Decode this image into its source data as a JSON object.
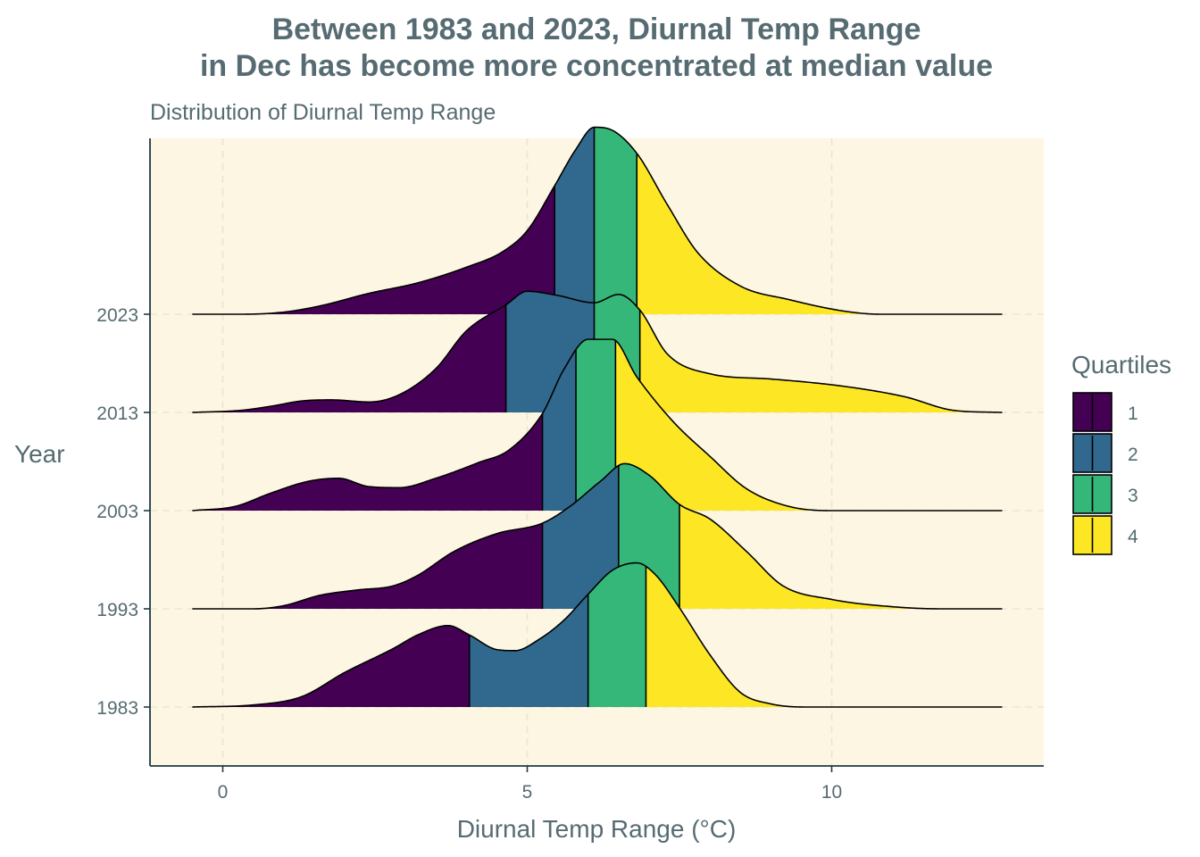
{
  "chart_data": {
    "type": "area",
    "title_lines": [
      "Between 1983 and 2023, Diurnal Temp Range",
      "in Dec has become more concentrated at median value"
    ],
    "subtitle": "Distribution of Diurnal Temp Range",
    "xlabel": "Diurnal Temp Range (°C)",
    "ylabel": "Year",
    "xlim": [
      -1.2,
      13.4
    ],
    "x_ticks": [
      0,
      5,
      10
    ],
    "x_tick_labels": [
      "0",
      "5",
      "10"
    ],
    "grid": true,
    "background": "#fdf6e3",
    "legend": {
      "title": "Quartiles",
      "position": "right",
      "entries": [
        {
          "label": "1",
          "color": "#440154"
        },
        {
          "label": "2",
          "color": "#31688e"
        },
        {
          "label": "3",
          "color": "#35b779"
        },
        {
          "label": "4",
          "color": "#fde725"
        }
      ]
    },
    "series": [
      {
        "name": "1983",
        "quartiles": [
          4.05,
          6.0,
          6.95
        ],
        "points": [
          [
            -0.5,
            0
          ],
          [
            0.5,
            0.02
          ],
          [
            1.3,
            0.1
          ],
          [
            2.0,
            0.33
          ],
          [
            2.8,
            0.56
          ],
          [
            3.2,
            0.69
          ],
          [
            3.7,
            0.78
          ],
          [
            4.05,
            0.69
          ],
          [
            4.5,
            0.55
          ],
          [
            4.8,
            0.54
          ],
          [
            5.2,
            0.65
          ],
          [
            5.6,
            0.83
          ],
          [
            6.0,
            1.08
          ],
          [
            6.4,
            1.31
          ],
          [
            6.8,
            1.38
          ],
          [
            7.1,
            1.27
          ],
          [
            7.5,
            0.95
          ],
          [
            8.0,
            0.5
          ],
          [
            8.5,
            0.14
          ],
          [
            9.0,
            0.03
          ],
          [
            9.6,
            0.0
          ],
          [
            12.8,
            0
          ]
        ]
      },
      {
        "name": "1993",
        "quartiles": [
          5.25,
          6.5,
          7.5
        ],
        "points": [
          [
            -0.5,
            0
          ],
          [
            0.5,
            0.0
          ],
          [
            1.0,
            0.03
          ],
          [
            1.6,
            0.13
          ],
          [
            2.2,
            0.18
          ],
          [
            2.8,
            0.22
          ],
          [
            3.2,
            0.32
          ],
          [
            3.8,
            0.55
          ],
          [
            4.5,
            0.72
          ],
          [
            5.25,
            0.82
          ],
          [
            5.7,
            0.98
          ],
          [
            6.2,
            1.22
          ],
          [
            6.6,
            1.39
          ],
          [
            7.0,
            1.28
          ],
          [
            7.5,
            1.0
          ],
          [
            8.0,
            0.86
          ],
          [
            8.6,
            0.55
          ],
          [
            9.2,
            0.22
          ],
          [
            10.0,
            0.09
          ],
          [
            11.0,
            0.02
          ],
          [
            11.8,
            0
          ],
          [
            12.8,
            0
          ]
        ]
      },
      {
        "name": "2003",
        "quartiles": [
          5.25,
          5.8,
          6.45
        ],
        "points": [
          [
            -0.5,
            0
          ],
          [
            0.2,
            0.04
          ],
          [
            0.8,
            0.17
          ],
          [
            1.4,
            0.28
          ],
          [
            1.9,
            0.31
          ],
          [
            2.4,
            0.23
          ],
          [
            2.9,
            0.22
          ],
          [
            3.5,
            0.31
          ],
          [
            4.2,
            0.46
          ],
          [
            4.7,
            0.58
          ],
          [
            5.25,
            0.93
          ],
          [
            5.6,
            1.35
          ],
          [
            6.0,
            1.64
          ],
          [
            6.4,
            1.64
          ],
          [
            6.8,
            1.28
          ],
          [
            7.4,
            0.85
          ],
          [
            8.0,
            0.52
          ],
          [
            8.6,
            0.21
          ],
          [
            9.3,
            0.04
          ],
          [
            10.0,
            0.0
          ],
          [
            12.8,
            0
          ]
        ]
      },
      {
        "name": "2013",
        "quartiles": [
          4.65,
          6.1,
          6.85
        ],
        "points": [
          [
            -0.5,
            0
          ],
          [
            0.3,
            0.02
          ],
          [
            0.8,
            0.06
          ],
          [
            1.3,
            0.11
          ],
          [
            1.8,
            0.12
          ],
          [
            2.4,
            0.1
          ],
          [
            2.9,
            0.17
          ],
          [
            3.5,
            0.42
          ],
          [
            4.0,
            0.78
          ],
          [
            4.65,
            1.03
          ],
          [
            5.0,
            1.16
          ],
          [
            5.5,
            1.12
          ],
          [
            6.1,
            1.05
          ],
          [
            6.5,
            1.13
          ],
          [
            6.85,
            0.98
          ],
          [
            7.3,
            0.56
          ],
          [
            8.0,
            0.37
          ],
          [
            9.0,
            0.32
          ],
          [
            10.2,
            0.25
          ],
          [
            11.2,
            0.15
          ],
          [
            12.0,
            0.02
          ],
          [
            12.8,
            0
          ]
        ]
      },
      {
        "name": "2023",
        "quartiles": [
          5.45,
          6.1,
          6.8
        ],
        "points": [
          [
            -0.5,
            0
          ],
          [
            0.3,
            0.0
          ],
          [
            1.0,
            0.02
          ],
          [
            1.6,
            0.08
          ],
          [
            2.4,
            0.2
          ],
          [
            3.2,
            0.3
          ],
          [
            4.0,
            0.45
          ],
          [
            4.6,
            0.6
          ],
          [
            5.0,
            0.8
          ],
          [
            5.45,
            1.23
          ],
          [
            5.8,
            1.58
          ],
          [
            6.1,
            1.79
          ],
          [
            6.4,
            1.76
          ],
          [
            6.8,
            1.54
          ],
          [
            7.3,
            1.05
          ],
          [
            7.8,
            0.59
          ],
          [
            8.5,
            0.27
          ],
          [
            9.3,
            0.14
          ],
          [
            10.2,
            0.03
          ],
          [
            10.8,
            0.0
          ],
          [
            12.8,
            0
          ]
        ]
      }
    ]
  }
}
